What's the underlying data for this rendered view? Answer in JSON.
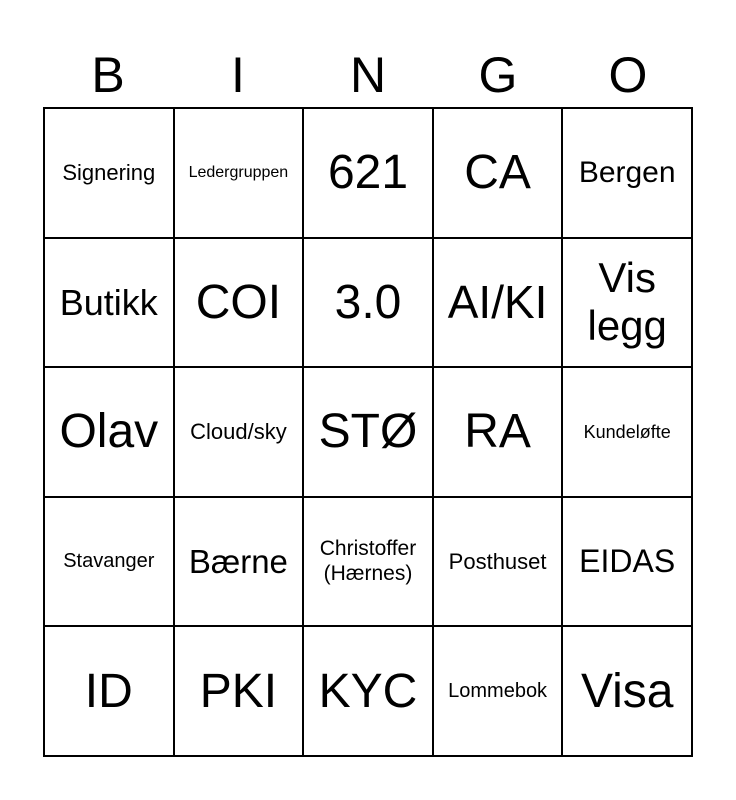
{
  "header": [
    "B",
    "I",
    "N",
    "G",
    "O"
  ],
  "cells": [
    {
      "text": "Signering",
      "size": 22
    },
    {
      "text": "Ledergruppen",
      "size": 16
    },
    {
      "text": "621",
      "size": 48
    },
    {
      "text": "CA",
      "size": 48
    },
    {
      "text": "Bergen",
      "size": 30
    },
    {
      "text": "Butikk",
      "size": 36
    },
    {
      "text": "COI",
      "size": 48
    },
    {
      "text": "3.0",
      "size": 48
    },
    {
      "text": "AI/KI",
      "size": 46
    },
    {
      "text": "Vis legg",
      "size": 42
    },
    {
      "text": "Olav",
      "size": 48
    },
    {
      "text": "Cloud/sky",
      "size": 22
    },
    {
      "text": "STØ",
      "size": 48
    },
    {
      "text": "RA",
      "size": 48
    },
    {
      "text": "Kundeløfte",
      "size": 18
    },
    {
      "text": "Stavanger",
      "size": 20
    },
    {
      "text": "Bærne",
      "size": 33
    },
    {
      "text": "Christoffer (Hærnes)",
      "size": 21
    },
    {
      "text": "Posthuset",
      "size": 22
    },
    {
      "text": "EIDAS",
      "size": 32
    },
    {
      "text": "ID",
      "size": 48
    },
    {
      "text": "PKI",
      "size": 48
    },
    {
      "text": "KYC",
      "size": 48
    },
    {
      "text": "Lommebok",
      "size": 20
    },
    {
      "text": "Visa",
      "size": 48
    }
  ]
}
